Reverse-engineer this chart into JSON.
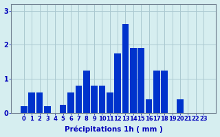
{
  "categories": [
    0,
    1,
    2,
    3,
    4,
    5,
    6,
    7,
    8,
    9,
    10,
    11,
    12,
    13,
    14,
    15,
    16,
    17,
    18,
    19,
    20,
    21,
    22,
    23
  ],
  "values": [
    0.2,
    0.6,
    0.6,
    0.2,
    0.0,
    0.25,
    0.6,
    0.8,
    1.25,
    0.8,
    0.8,
    0.6,
    1.75,
    2.6,
    1.9,
    1.9,
    0.4,
    1.25,
    1.25,
    0.0,
    0.4,
    0.0,
    0.0,
    0.0
  ],
  "bar_color": "#0033cc",
  "background_color": "#d6eef0",
  "grid_color": "#aac8d0",
  "xlabel": "Précipitations 1h ( mm )",
  "xlabel_color": "#0000bb",
  "xlabel_fontsize": 7.5,
  "tick_color": "#0000bb",
  "tick_fontsize": 6,
  "ylim": [
    0,
    3.2
  ],
  "yticks": [
    0,
    1,
    2,
    3
  ],
  "spine_color": "#708090"
}
